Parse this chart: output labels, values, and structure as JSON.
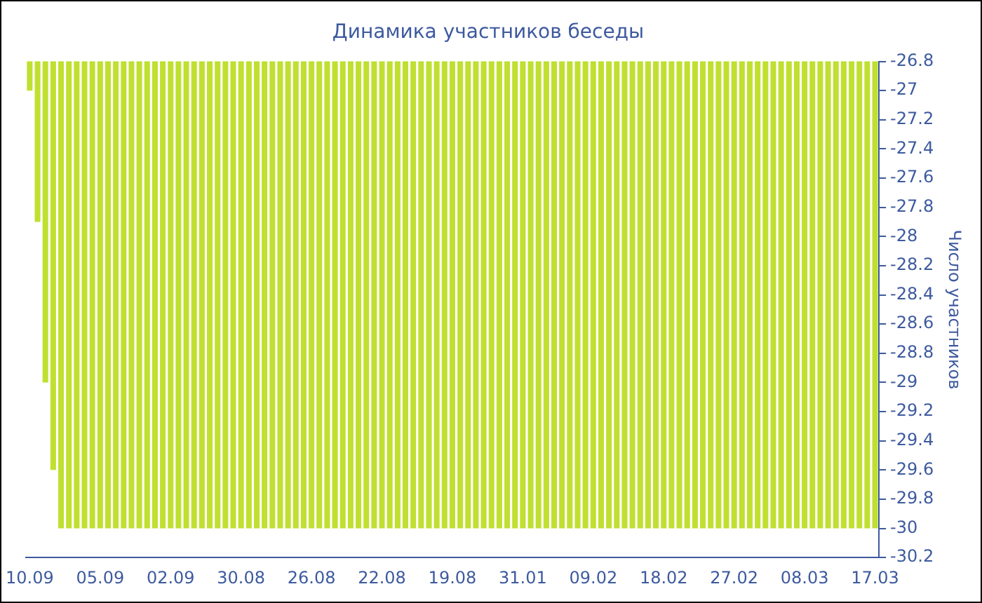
{
  "chart_data": {
    "type": "bar",
    "title": "Динамика участников беседы",
    "ylabel": "Число участников",
    "categories": [
      "10.09",
      null,
      null,
      null,
      null,
      null,
      null,
      null,
      null,
      "05.09",
      null,
      null,
      null,
      null,
      null,
      null,
      null,
      null,
      "02.09",
      null,
      null,
      null,
      null,
      null,
      null,
      null,
      null,
      "30.08",
      null,
      null,
      null,
      null,
      null,
      null,
      null,
      null,
      "26.08",
      null,
      null,
      null,
      null,
      null,
      null,
      null,
      null,
      "22.08",
      null,
      null,
      null,
      null,
      null,
      null,
      null,
      null,
      "19.08",
      null,
      null,
      null,
      null,
      null,
      null,
      null,
      null,
      "31.01",
      null,
      null,
      null,
      null,
      null,
      null,
      null,
      null,
      "09.02",
      null,
      null,
      null,
      null,
      null,
      null,
      null,
      null,
      "18.02",
      null,
      null,
      null,
      null,
      null,
      null,
      null,
      null,
      "27.02",
      null,
      null,
      null,
      null,
      null,
      null,
      null,
      null,
      "08.03",
      null,
      null,
      null,
      null,
      null,
      null,
      null,
      null,
      "17.03"
    ],
    "values": [
      -27,
      -27.9,
      -29,
      -29.6,
      -30,
      -30,
      -30,
      -30,
      -30,
      -30,
      -30,
      -30,
      -30,
      -30,
      -30,
      -30,
      -30,
      -30,
      -30,
      -30,
      -30,
      -30,
      -30,
      -30,
      -30,
      -30,
      -30,
      -30,
      -30,
      -30,
      -30,
      -30,
      -30,
      -30,
      -30,
      -30,
      -30,
      -30,
      -30,
      -30,
      -30,
      -30,
      -30,
      -30,
      -30,
      -30,
      -30,
      -30,
      -30,
      -30,
      -30,
      -30,
      -30,
      -30,
      -30,
      -30,
      -30,
      -30,
      -30,
      -30,
      -30,
      -30,
      -30,
      -30,
      -30,
      -30,
      -30,
      -30,
      -30,
      -30,
      -30,
      -30,
      -30,
      -30,
      -30,
      -30,
      -30,
      -30,
      -30,
      -30,
      -30,
      -30,
      -30,
      -30,
      -30,
      -30,
      -30,
      -30,
      -30,
      -30,
      -30,
      -30,
      -30,
      -30,
      -30,
      -30,
      -30,
      -30,
      -30,
      -30,
      -30,
      -30,
      -30,
      -30,
      -30,
      -30,
      -30,
      -30,
      -30
    ],
    "color": "#bfe030",
    "ylim": [
      -30.2,
      -26.8
    ],
    "yticks": [
      -26.8,
      -27,
      -27.2,
      -27.4,
      -27.6,
      -27.8,
      -28,
      -28.2,
      -28.4,
      -28.6,
      -28.8,
      -29,
      -29.2,
      -29.4,
      -29.6,
      -29.8,
      -30,
      -30.2
    ],
    "grid": false,
    "legend": false
  }
}
